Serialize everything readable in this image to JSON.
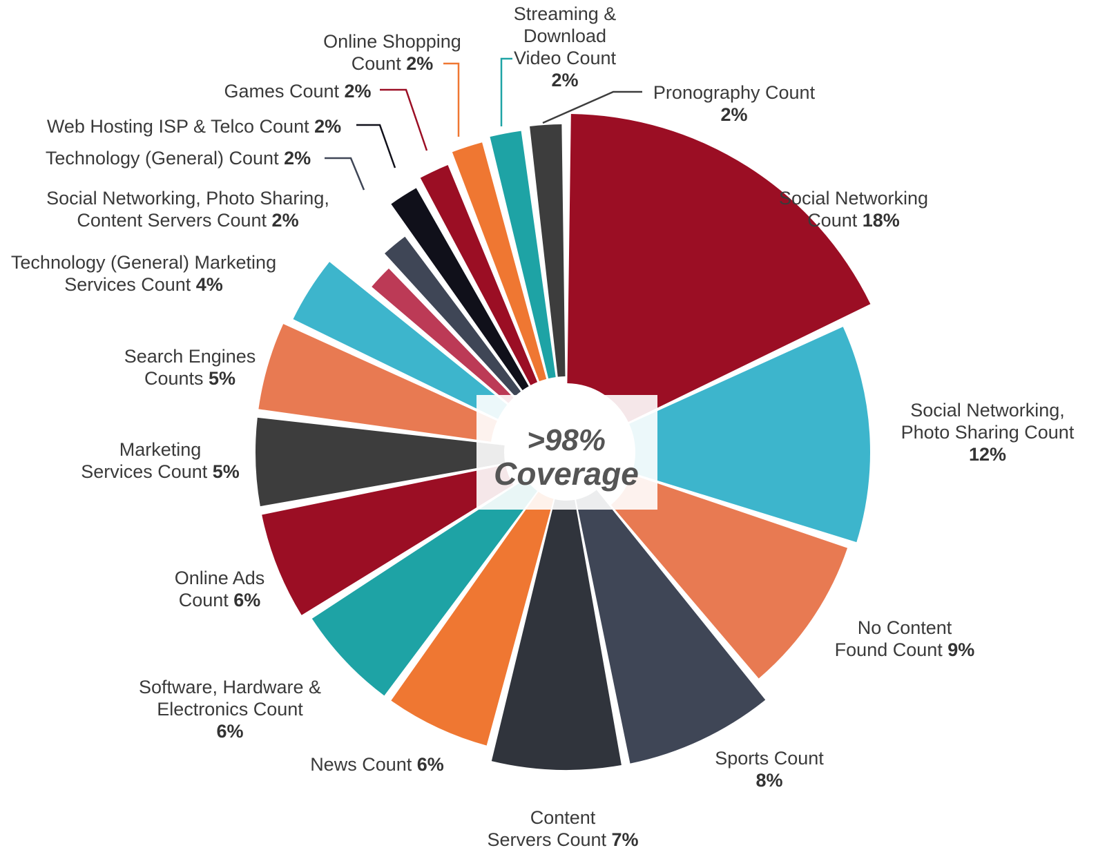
{
  "chart_data": {
    "type": "pie",
    "title": "",
    "center_label": [
      ">98%",
      "Coverage"
    ],
    "slices": [
      {
        "label": [
          "Social Networking",
          "Count"
        ],
        "pct_text": "18%",
        "value": 18,
        "color": "#9b0e24"
      },
      {
        "label": [
          "Social Networking,",
          "Photo Sharing Count"
        ],
        "pct_text": "12%",
        "value": 12,
        "color": "#3db5cc"
      },
      {
        "label": [
          "No Content",
          "Found  Count"
        ],
        "pct_text": "9%",
        "value": 9,
        "color": "#e87a52"
      },
      {
        "label": [
          "Sports  Count"
        ],
        "pct_text": "8%",
        "value": 8,
        "color": "#3f4656"
      },
      {
        "label": [
          "Content",
          "Servers  Count"
        ],
        "pct_text": "7%",
        "value": 7,
        "color": "#30343c"
      },
      {
        "label": [
          "News  Count"
        ],
        "pct_text": "6%",
        "value": 6,
        "color": "#ef7732"
      },
      {
        "label": [
          "Software, Hardware &",
          "Electronics Count"
        ],
        "pct_text": "6%",
        "value": 6,
        "color": "#1ea3a5"
      },
      {
        "label": [
          "Online Ads",
          "Count"
        ],
        "pct_text": "6%",
        "value": 6,
        "color": "#9b0e24"
      },
      {
        "label": [
          "Marketing",
          "Services Count"
        ],
        "pct_text": "5%",
        "value": 5,
        "color": "#3d3d3d"
      },
      {
        "label": [
          "Search Engines",
          "Counts"
        ],
        "pct_text": "5%",
        "value": 5,
        "color": "#e87a52"
      },
      {
        "label": [
          "Technology (General) Marketing",
          "Services Count"
        ],
        "pct_text": "4%",
        "value": 4,
        "color": "#3db5cc"
      },
      {
        "label": [
          "Social Networking, Photo Sharing,",
          "Content Servers Count"
        ],
        "pct_text": "2%",
        "value": 2,
        "color": "#bc3a56"
      },
      {
        "label": [
          "Technology (General) Count"
        ],
        "pct_text": "2%",
        "value": 2,
        "color": "#3f4656"
      },
      {
        "label": [
          "Web Hosting ISP & Telco Count"
        ],
        "pct_text": "2%",
        "value": 2,
        "color": "#10101a"
      },
      {
        "label": [
          "Games Count"
        ],
        "pct_text": "2%",
        "value": 2,
        "color": "#9b0e24"
      },
      {
        "label": [
          "Online Shopping",
          "Count"
        ],
        "pct_text": "2%",
        "value": 2,
        "color": "#ef7732"
      },
      {
        "label": [
          "Streaming &",
          "Download",
          "Video Count"
        ],
        "pct_text": "2%",
        "value": 2,
        "color": "#1ea3a5"
      },
      {
        "label": [
          "Pronography Count"
        ],
        "pct_text": "2%",
        "value": 2,
        "color": "#3d3d3d"
      }
    ]
  }
}
